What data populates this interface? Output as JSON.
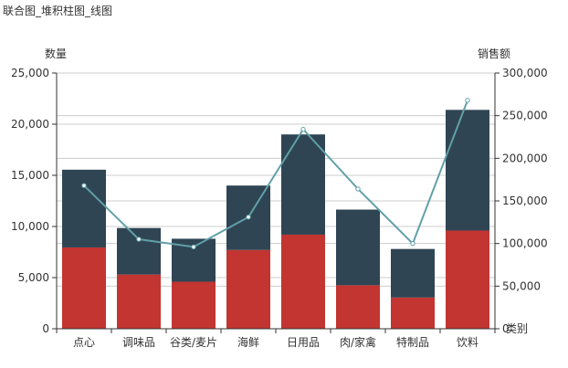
{
  "chart_data": {
    "type": "bar",
    "title": "联合图_堆积柱图_线图",
    "categories": [
      "点心",
      "调味品",
      "谷类/麦片",
      "海鲜",
      "日用品",
      "肉/家禽",
      "特制品",
      "饮料"
    ],
    "xlabel": "类别",
    "ylabel_left": "数量",
    "ylabel_right": "销售额",
    "ylim_left": [
      0,
      25000
    ],
    "ylim_right": [
      0,
      300000
    ],
    "yticks_left": [
      "0",
      "5,000",
      "10,000",
      "15,000",
      "20,000",
      "25,000"
    ],
    "yticks_right": [
      "0",
      "50,000",
      "100,000",
      "150,000",
      "200,000",
      "250,000",
      "300,000"
    ],
    "grid": true,
    "series": [
      {
        "type": "bar",
        "axis": "left",
        "stack": "qty",
        "values": [
          7950,
          5300,
          4600,
          7700,
          9200,
          4250,
          3050,
          9600
        ],
        "color": "#c23531"
      },
      {
        "type": "bar",
        "axis": "left",
        "stack": "qty",
        "values": [
          7600,
          4550,
          4200,
          6300,
          9800,
          7400,
          4750,
          11800
        ],
        "color": "#2f4554"
      },
      {
        "type": "line",
        "axis": "right",
        "values": [
          168000,
          105000,
          96000,
          131000,
          234000,
          164000,
          100000,
          268000
        ],
        "color": "#61a0a8"
      }
    ]
  }
}
